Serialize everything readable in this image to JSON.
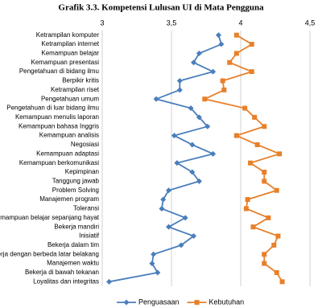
{
  "chart_data": {
    "type": "line",
    "orientation": "horizontal",
    "title": "Grafik 3.3. Kompetensi Lulusan UI di Mata Pengguna",
    "categories": [
      "Ketrampilan komputer",
      "Ketrampilan internet",
      "Kemampuan belajar",
      "Kemampuan presentasi",
      "Pengetahuan di bidang ilmu",
      "Berpikir kritis",
      "Ketrampilan riset",
      "Pengetahuan umum",
      "Pengetahuan di luar bidang ilmu",
      "Kemampuan menulis laporan",
      "Kemampuan bahasa Inggris",
      "Kemampuan analisis",
      "Negosiasi",
      "Kemampuan adaptasi",
      "Kemampuan berkomunikasi",
      "Kepimpinan",
      "Tanggung jawab",
      "Problem Solving",
      "Manajemen program",
      "Toleransi",
      "Kemampuan belajar sepanjang hayat",
      "Bekerja mandiri",
      "Inisiatif",
      "Bekerja dalam tim",
      "Bekerja dengan berbeda latar belakang",
      "Manajemen waktu",
      "Bekerja di bawah tekanan",
      "Loyalitas dan integritas"
    ],
    "series": [
      {
        "name": "Penguasaan",
        "color": "#4a7ebb",
        "marker": "diamond",
        "values": [
          3.84,
          3.86,
          3.7,
          3.66,
          3.8,
          3.56,
          3.56,
          3.39,
          3.64,
          3.7,
          3.76,
          3.52,
          3.65,
          3.8,
          3.54,
          3.65,
          3.7,
          3.48,
          3.44,
          3.43,
          3.6,
          3.48,
          3.66,
          3.57,
          3.37,
          3.36,
          3.4,
          3.05
        ]
      },
      {
        "name": "Kebutuhan",
        "color": "#e8802a",
        "marker": "square",
        "values": [
          3.97,
          4.08,
          3.97,
          3.92,
          4.08,
          3.87,
          3.88,
          3.74,
          4.03,
          4.1,
          4.17,
          3.97,
          4.12,
          4.28,
          4.07,
          4.17,
          4.17,
          4.26,
          4.05,
          4.04,
          4.2,
          4.09,
          4.27,
          4.24,
          4.17,
          4.17,
          4.26,
          4.3
        ]
      }
    ],
    "xlim": [
      3,
      4.5
    ],
    "xticks": [
      3,
      {
        "value": 3.5,
        "label": "3,5"
      },
      4,
      {
        "value": 4.5,
        "label": "4,5"
      }
    ],
    "grid": true,
    "legend": "bottom"
  }
}
